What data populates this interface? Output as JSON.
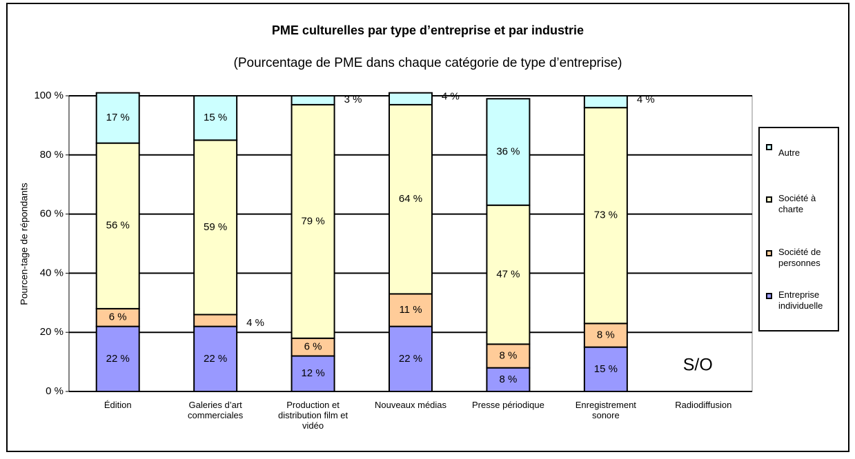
{
  "chart_data": {
    "type": "stacked_bar",
    "title": "PME culturelles par type d’entreprise et par industrie",
    "subtitle": "(Pourcentage de PME dans chaque catégorie de type d’entreprise)",
    "y_label": "Pourcen-tage de répondants",
    "categories": [
      "Édition",
      "Galeries d’art commerciales",
      "Production et distribution film et vidéo",
      "Nouveaux médias",
      "Presse périodique",
      "Enregistrement sonore",
      "Radiodiffusion"
    ],
    "series": [
      {
        "name": "Entreprise individuelle",
        "color": "#9999ff",
        "values": [
          22,
          22,
          12,
          22,
          8,
          15,
          null
        ],
        "value_labels": [
          "22 %",
          "22 %",
          "12 %",
          "22 %",
          "8 %",
          "15 %",
          null
        ]
      },
      {
        "name": "Société de personnes",
        "color": "#ffcc99",
        "values": [
          6,
          4,
          6,
          11,
          8,
          8,
          null
        ],
        "value_labels": [
          "6 %",
          "4 %",
          "6 %",
          "11 %",
          "8 %",
          "8 %",
          null
        ]
      },
      {
        "name": "Société à charte",
        "color": "#ffffcc",
        "values": [
          56,
          59,
          79,
          64,
          47,
          73,
          null
        ],
        "value_labels": [
          "56 %",
          "59 %",
          "79 %",
          "64 %",
          "47 %",
          "73 %",
          null
        ]
      },
      {
        "name": "Autre",
        "color": "#ccffff",
        "values": [
          17,
          15,
          3,
          4,
          36,
          4,
          null
        ],
        "value_labels": [
          "17 %",
          "15 %",
          "3 %",
          "4 %",
          "36 %",
          "4 %",
          null
        ]
      }
    ],
    "annotation": "S/O",
    "ylim": [
      0,
      100
    ],
    "yticks": [
      {
        "value": 0,
        "label": "0 %"
      },
      {
        "value": 20,
        "label": "20 %"
      },
      {
        "value": 40,
        "label": "40 %"
      },
      {
        "value": 60,
        "label": "60 %"
      },
      {
        "value": 80,
        "label": "80 %"
      },
      {
        "value": 100,
        "label": "100 %"
      }
    ],
    "grid": true,
    "legend": "right"
  }
}
